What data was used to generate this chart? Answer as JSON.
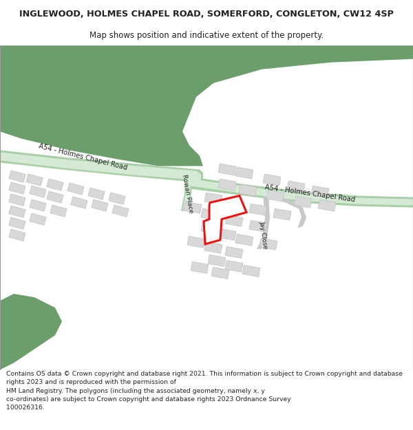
{
  "title": "INGLEWOOD, HOLMES CHAPEL ROAD, SOMERFORD, CONGLETON, CW12 4SP",
  "subtitle": "Map shows position and indicative extent of the property.",
  "footer": "Contains OS data © Crown copyright and database right 2021. This information is subject to Crown copyright and database rights 2023 and is reproduced with the permission of\nHM Land Registry. The polygons (including the associated geometry, namely x, y co-ordinates) are subject to Crown copyright and database rights 2023 Ordnance Survey\n100026316.",
  "bg": "#ffffff",
  "green": "#6b9e6b",
  "road_fill": "#d4ead4",
  "road_edge": "#a8cfa8",
  "bld_fill": "#d8d8d8",
  "bld_edge": "#c0c0c0",
  "red": "#ee1111",
  "white": "#ffffff",
  "text_dark": "#222222"
}
